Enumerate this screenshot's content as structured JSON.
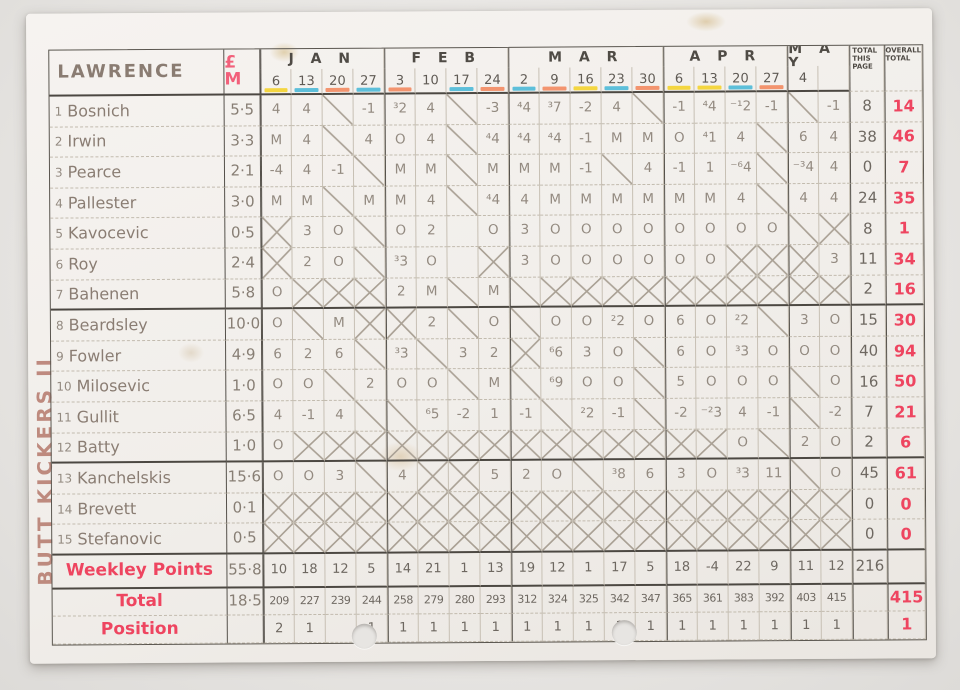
{
  "sheet": {
    "team_name": "BUTT KICKERS II",
    "manager": "LAWRENCE",
    "price_header": "£ M",
    "months": [
      {
        "label": "J A N",
        "span": 4
      },
      {
        "label": "F E B",
        "span": 4
      },
      {
        "label": "M A R",
        "span": 5
      },
      {
        "label": "A P R",
        "span": 4
      },
      {
        "label": "M A Y",
        "span": 2
      }
    ],
    "week_dates": [
      "6",
      "13",
      "20",
      "27",
      "3",
      "10",
      "17",
      "24",
      "2",
      "9",
      "16",
      "23",
      "30",
      "6",
      "13",
      "20",
      "27",
      "4",
      ""
    ],
    "week_highlights": [
      "yellow",
      "blue",
      "orange",
      "blue",
      "orange",
      "",
      "blue",
      "orange",
      "blue",
      "orange",
      "yellow",
      "blue",
      "orange",
      "yellow",
      "yellow",
      "blue",
      "orange",
      "",
      ""
    ],
    "totals_header": {
      "page": "TOTAL THIS PAGE",
      "overall": "OVERALL TOTAL"
    },
    "players": [
      {
        "num": "1",
        "name": "Bosnich",
        "price": "5·5",
        "weeks": [
          "4",
          "4",
          "/",
          "-1",
          "³2",
          "4",
          "/",
          "-3",
          "⁴4",
          "³7",
          "-2",
          "4",
          "/",
          "-1",
          "⁴4",
          "⁻¹2",
          "-1",
          "/",
          "-1"
        ],
        "page": "8",
        "overall": "14"
      },
      {
        "num": "2",
        "name": "Irwin",
        "price": "3·3",
        "weeks": [
          "M",
          "4",
          "/",
          "4",
          "O",
          "4",
          "/",
          "⁴4",
          "⁴4",
          "⁴4",
          "-1",
          "M",
          "M",
          "O",
          "⁴1",
          "4",
          "/",
          "6",
          "4"
        ],
        "page": "38",
        "overall": "46"
      },
      {
        "num": "3",
        "name": "Pearce",
        "price": "2·1",
        "weeks": [
          "-4",
          "4",
          "-1",
          "/",
          "M",
          "M",
          "/",
          "M",
          "M",
          "M",
          "-1",
          "/",
          "4",
          "-1",
          "1",
          "⁻⁶4",
          "/",
          "⁻³4",
          "4"
        ],
        "page": "0",
        "overall": "7"
      },
      {
        "num": "4",
        "name": "Pallester",
        "price": "3·0",
        "weeks": [
          "M",
          "M",
          "/",
          "M",
          "M",
          "4",
          "/",
          "⁴4",
          "4",
          "M",
          "M",
          "M",
          "M",
          "M",
          "M",
          "4",
          "/",
          "4",
          "4"
        ],
        "page": "24",
        "overall": "35"
      },
      {
        "num": "5",
        "name": "Kavocevic",
        "price": "0·5",
        "weeks": [
          "X",
          "3",
          "O",
          "/",
          "O",
          "2",
          "",
          "O",
          "3",
          "O",
          "O",
          "O",
          "O",
          "O",
          "O",
          "O",
          "O",
          "/",
          "X"
        ],
        "page": "8",
        "overall": "1"
      },
      {
        "num": "6",
        "name": "Roy",
        "price": "2·4",
        "weeks": [
          "X",
          "2",
          "O",
          "/",
          "³3",
          "O",
          "",
          "X",
          "3",
          "O",
          "O",
          "O",
          "O",
          "O",
          "O",
          "X",
          "X",
          "X",
          "3"
        ],
        "page": "11",
        "overall": "34"
      },
      {
        "num": "7",
        "name": "Bahenen",
        "price": "5·8",
        "weeks": [
          "O",
          "X",
          "X",
          "X",
          "2",
          "M",
          "/",
          "M",
          "/",
          "X",
          "X",
          "X",
          "X",
          "X",
          "X",
          "X",
          "X",
          "X",
          "X"
        ],
        "page": "2",
        "overall": "16"
      },
      {
        "num": "8",
        "name": "Beardsley",
        "price": "10·0",
        "weeks": [
          "O",
          "/",
          "M",
          "X",
          "X",
          "2",
          "/",
          "O",
          "/",
          "O",
          "O",
          "²2",
          "O",
          "6",
          "O",
          "²2",
          "/",
          "3",
          "O"
        ],
        "page": "15",
        "overall": "30"
      },
      {
        "num": "9",
        "name": "Fowler",
        "price": "4·9",
        "weeks": [
          "6",
          "2",
          "6",
          "/",
          "³3",
          "/",
          "3",
          "2",
          "X",
          "⁶6",
          "3",
          "O",
          "/",
          "6",
          "O",
          "³3",
          "O",
          "O",
          "O"
        ],
        "page": "40",
        "overall": "94"
      },
      {
        "num": "10",
        "name": "Milosevic",
        "price": "1·0",
        "weeks": [
          "O",
          "O",
          "/",
          "2",
          "O",
          "O",
          "/",
          "M",
          "/",
          "⁶9",
          "O",
          "O",
          "/",
          "5",
          "O",
          "O",
          "O",
          "/",
          "O"
        ],
        "page": "16",
        "overall": "50"
      },
      {
        "num": "11",
        "name": "Gullit",
        "price": "6·5",
        "weeks": [
          "4",
          "-1",
          "4",
          "/",
          "/",
          "⁶5",
          "-2",
          "1",
          "-1",
          "/",
          "²2",
          "-1",
          "/",
          "-2",
          "⁻²3",
          "4",
          "-1",
          "/",
          "-2"
        ],
        "page": "7",
        "overall": "21"
      },
      {
        "num": "12",
        "name": "Batty",
        "price": "1·0",
        "weeks": [
          "O",
          "X",
          "X",
          "X",
          "X",
          "X",
          "X",
          "X",
          "X",
          "X",
          "X",
          "X",
          "X",
          "X",
          "X",
          "O",
          "/",
          "2",
          "O"
        ],
        "page": "2",
        "overall": "6"
      },
      {
        "num": "13",
        "name": "Kanchelskis",
        "price": "15·6",
        "weeks": [
          "O",
          "O",
          "3",
          "/",
          "4",
          "X",
          "X",
          "5",
          "2",
          "O",
          "/",
          "³8",
          "6",
          "3",
          "O",
          "³3",
          "11",
          "/",
          "O"
        ],
        "page": "45",
        "overall": "61"
      },
      {
        "num": "14",
        "name": "Brevett",
        "price": "0·1",
        "weeks": [
          "X",
          "X",
          "X",
          "X",
          "X",
          "X",
          "X",
          "X",
          "X",
          "X",
          "X",
          "X",
          "X",
          "X",
          "X",
          "X",
          "X",
          "X",
          "X"
        ],
        "page": "0",
        "overall": "0"
      },
      {
        "num": "15",
        "name": "Stefanovic",
        "price": "0·5",
        "weeks": [
          "X",
          "X",
          "X",
          "X",
          "X",
          "X",
          "X",
          "X",
          "X",
          "X",
          "X",
          "X",
          "X",
          "X",
          "X",
          "X",
          "X",
          "X",
          "X"
        ],
        "page": "0",
        "overall": "0"
      }
    ],
    "summary_rows": [
      {
        "label": "Weekley Points",
        "price": "55·8",
        "weeks": [
          "10",
          "18",
          "12",
          "5",
          "14",
          "21",
          "1",
          "13",
          "19",
          "12",
          "1",
          "17",
          "5",
          "18",
          "-4",
          "22",
          "9",
          "11",
          "12"
        ],
        "page": "216",
        "overall": ""
      },
      {
        "label": "Total",
        "price": "18·5",
        "weeks": [
          "209",
          "227",
          "239",
          "244",
          "258",
          "279",
          "280",
          "293",
          "312",
          "324",
          "325",
          "342",
          "347",
          "365",
          "361",
          "383",
          "392",
          "403",
          "415"
        ],
        "page": "",
        "overall": "415"
      },
      {
        "label": "Position",
        "price": "",
        "weeks": [
          "2",
          "1",
          "",
          "1",
          "1",
          "1",
          "1",
          "1",
          "1",
          "1",
          "1",
          "1",
          "1",
          "1",
          "1",
          "1",
          "1",
          "1",
          "1"
        ],
        "page": "",
        "overall": "1"
      }
    ],
    "colors": {
      "pencil": "#938a80",
      "pencil_dark": "#6e6861",
      "red_pen": "#ee4560",
      "highlight_yellow": "#f4d32e",
      "highlight_blue": "#4cb9d7",
      "highlight_orange": "#f38a60"
    }
  }
}
